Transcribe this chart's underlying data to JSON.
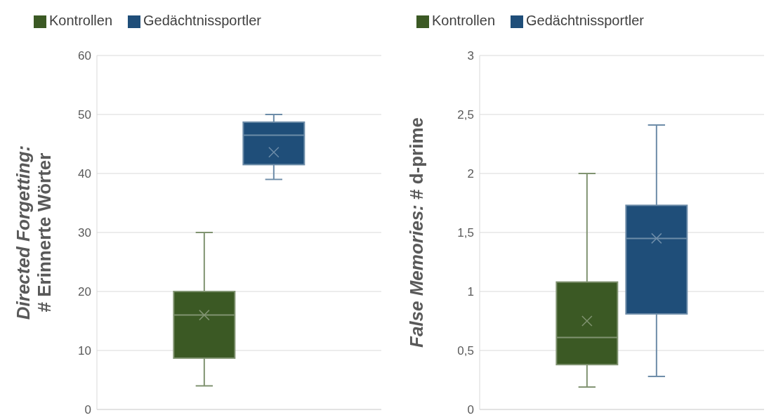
{
  "chart_data": [
    {
      "type": "box",
      "ylabel": "Directed Forgetting:\n# Erinnerte Wörter",
      "categories": [
        null
      ],
      "series": [
        {
          "name": "Kontrollen",
          "color": "#3b5924",
          "boxes": [
            {
              "low": 4,
              "q1": 8.7,
              "median": 16,
              "q3": 20,
              "high": 30,
              "mean": 16
            }
          ]
        },
        {
          "name": "Gedächtnissportler",
          "color": "#1f4e79",
          "boxes": [
            {
              "low": 39,
              "q1": 41.5,
              "median": 46.5,
              "q3": 48.7,
              "high": 50,
              "mean": 43.6
            }
          ]
        }
      ],
      "ylim": [
        0,
        60
      ],
      "yticks": [
        0,
        10,
        20,
        30,
        40,
        50,
        60
      ],
      "grid": "y",
      "legend": "top left",
      "tick_labels": "y"
    },
    {
      "type": "box",
      "ylabel": "False Memories: # d-prime",
      "categories": [
        null
      ],
      "series": [
        {
          "name": "Kontrollen",
          "color": "#3b5924",
          "boxes": [
            {
              "low": 0.19,
              "q1": 0.38,
              "median": 0.61,
              "q3": 1.08,
              "high": 2.0,
              "mean": 0.75
            }
          ]
        },
        {
          "name": "Gedächtnissportler",
          "color": "#1f4e79",
          "boxes": [
            {
              "low": 0.28,
              "q1": 0.81,
              "median": 1.45,
              "q3": 1.73,
              "high": 2.41,
              "mean": 1.45
            }
          ]
        }
      ],
      "ylim": [
        0,
        3
      ],
      "yticks": [
        0,
        {
          "value": 0.5,
          "label": "0,5"
        },
        1,
        {
          "value": 1.5,
          "label": "1,5"
        },
        2,
        {
          "value": 2.5,
          "label": "2,5"
        },
        3
      ],
      "grid": "y",
      "legend": "top left",
      "tick_labels": "y"
    }
  ]
}
